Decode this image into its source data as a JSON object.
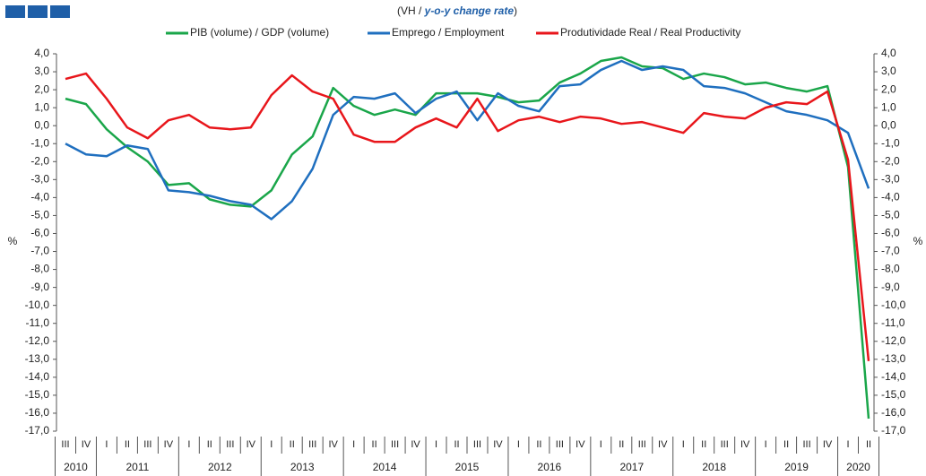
{
  "chart_data": {
    "type": "line",
    "subtitle": {
      "parts": [
        "(VH / ",
        "y-o-y change rate",
        ")"
      ]
    },
    "ylabel": "%",
    "y2label": "%",
    "categories": [
      "III",
      "IV",
      "I",
      "II",
      "III",
      "IV",
      "I",
      "II",
      "III",
      "IV",
      "I",
      "II",
      "III",
      "IV",
      "I",
      "II",
      "III",
      "IV",
      "I",
      "II",
      "III",
      "IV",
      "I",
      "II",
      "III",
      "IV",
      "I",
      "II",
      "III",
      "IV",
      "I",
      "II",
      "III",
      "IV",
      "I",
      "II",
      "III",
      "IV",
      "I",
      "II"
    ],
    "years": [
      "2010",
      "2011",
      "2012",
      "2013",
      "2014",
      "2015",
      "2016",
      "2017",
      "2018",
      "2019",
      "2020"
    ],
    "series": [
      {
        "name": "PIB (volume) / GDP (volume)",
        "color": "#1aa64a",
        "values": [
          1.5,
          1.2,
          -0.2,
          -1.2,
          -2.0,
          -3.3,
          -3.2,
          -4.1,
          -4.4,
          -4.5,
          -3.6,
          -1.6,
          -0.6,
          2.1,
          1.1,
          0.6,
          0.9,
          0.6,
          1.8,
          1.8,
          1.8,
          1.6,
          1.3,
          1.4,
          2.4,
          2.9,
          3.6,
          3.8,
          3.3,
          3.2,
          2.6,
          2.9,
          2.7,
          2.3,
          2.4,
          2.1,
          1.9,
          2.2,
          -2.3,
          -16.3
        ]
      },
      {
        "name": "Emprego / Employment",
        "color": "#1f6fbf",
        "values": [
          -1.0,
          -1.6,
          -1.7,
          -1.1,
          -1.3,
          -3.6,
          -3.7,
          -3.9,
          -4.2,
          -4.4,
          -5.2,
          -4.2,
          -2.4,
          0.6,
          1.6,
          1.5,
          1.8,
          0.7,
          1.5,
          1.9,
          0.3,
          1.8,
          1.1,
          0.8,
          2.2,
          2.3,
          3.1,
          3.6,
          3.1,
          3.3,
          3.1,
          2.2,
          2.1,
          1.8,
          1.3,
          0.8,
          0.6,
          0.3,
          -0.4,
          -3.5
        ]
      },
      {
        "name": "Produtividade Real / Real Productivity",
        "color": "#e8161b",
        "values": [
          2.6,
          2.9,
          1.5,
          -0.1,
          -0.7,
          0.3,
          0.6,
          -0.1,
          -0.2,
          -0.1,
          1.7,
          2.8,
          1.9,
          1.5,
          -0.5,
          -0.9,
          -0.9,
          -0.1,
          0.4,
          -0.1,
          1.5,
          -0.3,
          0.3,
          0.5,
          0.2,
          0.5,
          0.4,
          0.1,
          0.2,
          -0.1,
          -0.4,
          0.7,
          0.5,
          0.4,
          1.0,
          1.3,
          1.2,
          1.9,
          -1.9,
          -13.1
        ]
      }
    ],
    "ylim": [
      -17,
      4
    ],
    "yticks": [
      {
        "value": 4,
        "label": "4,0"
      },
      {
        "value": 3,
        "label": "3,0"
      },
      {
        "value": 2,
        "label": "2,0"
      },
      {
        "value": 1,
        "label": "1,0"
      },
      {
        "value": 0,
        "label": "0,0"
      },
      {
        "value": -1,
        "label": "-1,0"
      },
      {
        "value": -2,
        "label": "-2,0"
      },
      {
        "value": -3,
        "label": "-3,0"
      },
      {
        "value": -4,
        "label": "-4,0"
      },
      {
        "value": -5,
        "label": "-5,0"
      },
      {
        "value": -6,
        "label": "-6,0"
      },
      {
        "value": -7,
        "label": "-7,0"
      },
      {
        "value": -8,
        "label": "-8,0"
      },
      {
        "value": -9,
        "label": "-9,0"
      },
      {
        "value": -10,
        "label": "-10,0"
      },
      {
        "value": -11,
        "label": "-11,0"
      },
      {
        "value": -12,
        "label": "-12,0"
      },
      {
        "value": -13,
        "label": "-13,0"
      },
      {
        "value": -14,
        "label": "-14,0"
      },
      {
        "value": -15,
        "label": "-15,0"
      },
      {
        "value": -16,
        "label": "-16,0"
      },
      {
        "value": -17,
        "label": "-17,0"
      }
    ],
    "y2lim": [
      -17,
      4
    ],
    "y2ticks": [
      {
        "value": 4,
        "label": "4,0"
      },
      {
        "value": 3,
        "label": "3,0"
      },
      {
        "value": 2,
        "label": "2,0"
      },
      {
        "value": 1,
        "label": "1,0"
      },
      {
        "value": 0,
        "label": "0,0"
      },
      {
        "value": -1,
        "label": "-1,0"
      },
      {
        "value": -2,
        "label": "-2,0"
      },
      {
        "value": -3,
        "label": "-3,0"
      },
      {
        "value": -4,
        "label": "-4,0"
      },
      {
        "value": -5,
        "label": "-5,0"
      },
      {
        "value": -6,
        "label": "-6,0"
      },
      {
        "value": -7,
        "label": "-7,0"
      },
      {
        "value": -8,
        "label": "-8,0"
      },
      {
        "value": -9,
        "label": "-9,0"
      },
      {
        "value": -10,
        "label": "-10,0"
      },
      {
        "value": -11,
        "label": "-11,0"
      },
      {
        "value": -12,
        "label": "-12,0"
      },
      {
        "value": -13,
        "label": "-13,0"
      },
      {
        "value": -14,
        "label": "-14,0"
      },
      {
        "value": -15,
        "label": "-15,0"
      },
      {
        "value": -16,
        "label": "-16,0"
      },
      {
        "value": -17,
        "label": "-17,0"
      }
    ],
    "grid": false
  }
}
